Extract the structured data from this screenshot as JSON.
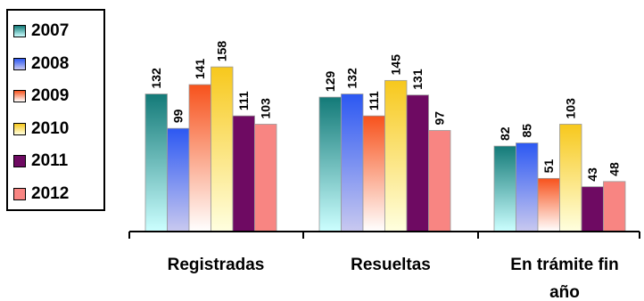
{
  "chart_data": {
    "type": "bar",
    "categories": [
      "Registradas",
      "Resueltas",
      "En trámite fin año"
    ],
    "category_lines": [
      [
        "Registradas"
      ],
      [
        "Resueltas"
      ],
      [
        "En trámite fin",
        "año"
      ]
    ],
    "series": [
      {
        "name": "2007",
        "values": [
          132,
          129,
          82
        ],
        "colors": [
          "#ccffff",
          "#137a78"
        ]
      },
      {
        "name": "2008",
        "values": [
          99,
          132,
          85
        ],
        "colors": [
          "#c9c9f0",
          "#2c58f2"
        ]
      },
      {
        "name": "2009",
        "values": [
          141,
          111,
          51
        ],
        "colors": [
          "#ffffff",
          "#f7521c"
        ]
      },
      {
        "name": "2010",
        "values": [
          158,
          145,
          103
        ],
        "colors": [
          "#ffffe0",
          "#f7c81c"
        ]
      },
      {
        "name": "2011",
        "values": [
          111,
          131,
          43
        ],
        "colors": [
          "#6e0a62",
          "#6e0a62"
        ]
      },
      {
        "name": "2012",
        "values": [
          103,
          97,
          48
        ],
        "colors": [
          "#f88582",
          "#f88582"
        ]
      }
    ],
    "ylim": [
      0,
      175
    ],
    "legend": "left",
    "grid": false
  }
}
